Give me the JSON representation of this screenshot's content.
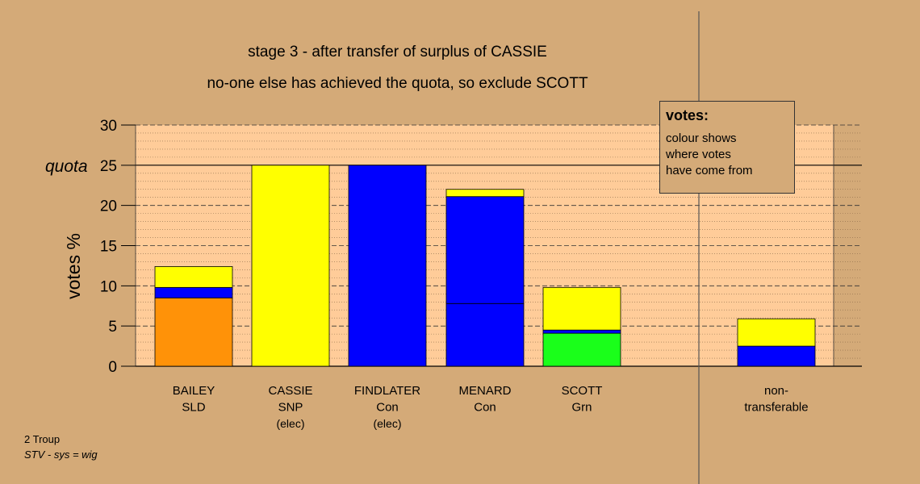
{
  "titles": {
    "line1": "stage 3 - after transfer of surplus of CASSIE",
    "line2": "no-one else has achieved the quota, so exclude SCOTT"
  },
  "legend": {
    "heading": "votes:",
    "lines": [
      "colour shows",
      "where votes",
      "have come from"
    ]
  },
  "footer": {
    "line1": "2 Troup",
    "line2": "STV - sys = wig"
  },
  "colors": {
    "background": "#d4aa78",
    "plot_area": "#ffcc99",
    "SLD": "#ff9208",
    "Con": "#0000ff",
    "SNP": "#ffff00",
    "Grn": "#1aff1a"
  },
  "chart_data": {
    "type": "bar",
    "stacked": true,
    "ylabel": "votes %",
    "ylim": [
      0,
      30
    ],
    "yticks": [
      0,
      5,
      10,
      15,
      20,
      25,
      30
    ],
    "quota": 25,
    "quota_label": "quota",
    "categories": [
      {
        "name": "BAILEY",
        "party": "SLD",
        "note": "",
        "segments": [
          {
            "from": "SLD",
            "value": 8.5
          },
          {
            "from": "Con",
            "value": 1.3
          },
          {
            "from": "SNP",
            "value": 2.6
          }
        ]
      },
      {
        "name": "CASSIE",
        "party": "SNP",
        "note": "(elec)",
        "segments": [
          {
            "from": "SNP",
            "value": 25
          }
        ]
      },
      {
        "name": "FINDLATER",
        "party": "Con",
        "note": "(elec)",
        "segments": [
          {
            "from": "Con",
            "value": 25
          }
        ]
      },
      {
        "name": "MENARD",
        "party": "Con",
        "note": "",
        "segments": [
          {
            "from": "Con",
            "value": 7.8
          },
          {
            "from": "Con",
            "value": 13.3
          },
          {
            "from": "SNP",
            "value": 0.9
          }
        ]
      },
      {
        "name": "SCOTT",
        "party": "Grn",
        "note": "",
        "segments": [
          {
            "from": "Grn",
            "value": 4.1
          },
          {
            "from": "Con",
            "value": 0.4
          },
          {
            "from": "SNP",
            "value": 5.3
          }
        ]
      },
      {
        "name": "non-",
        "party": "transferable",
        "note": "",
        "segments": [
          {
            "from": "Con",
            "value": 2.5
          },
          {
            "from": "SNP",
            "value": 3.4
          }
        ]
      }
    ]
  }
}
